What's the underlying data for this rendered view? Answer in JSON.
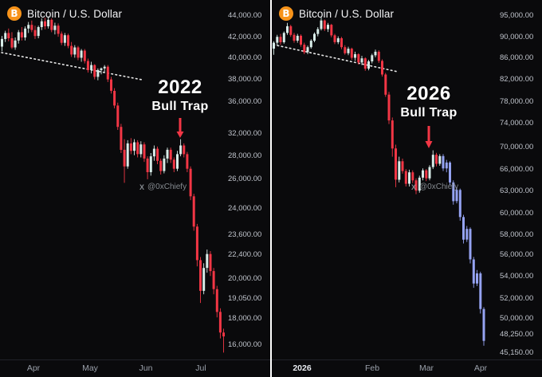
{
  "page": {
    "background": "#0a0a0c",
    "divider_color": "#ffffff"
  },
  "chart_data": [
    {
      "type": "candlestick",
      "title": "Bitcoin / U.S. Dollar",
      "symbol_icon": "bitcoin-logo",
      "logo_color": "#f7931a",
      "logo_letter": "B",
      "annotation_year": "2022",
      "annotation_label": "Bull Trap",
      "watermark_prefix": "X",
      "watermark_handle": "@0xChiefy",
      "scale": "log",
      "ylim": [
        15000,
        45500
      ],
      "grid": false,
      "up_color": "#d8ece8",
      "down_color": "#f23645",
      "trendline_color": "#ffffff",
      "trendline_style": "dotted",
      "arrow_color": "#f23645",
      "x_tick_labels": [
        "Apr",
        "May",
        "Jun",
        "Jul"
      ],
      "y_tick_labels": [
        "44,000.00",
        "42,000.00",
        "40,000.00",
        "38,000.00",
        "36,000.00",
        "32,000.00",
        "28,000.00",
        "26,000.00",
        "24,000.00",
        "23,600.00",
        "22,400.00",
        "20,000.00",
        "19,050.00",
        "18,000.00",
        "16,000.00"
      ],
      "candles": [
        [
          40200,
          41600,
          39600,
          41200
        ],
        [
          41200,
          42300,
          40800,
          42000
        ],
        [
          42000,
          42600,
          40900,
          41300
        ],
        [
          41300,
          42100,
          39900,
          40100
        ],
        [
          40100,
          41400,
          39800,
          41000
        ],
        [
          41000,
          42400,
          40600,
          42100
        ],
        [
          42100,
          42800,
          41000,
          41400
        ],
        [
          41400,
          42900,
          41000,
          42600
        ],
        [
          42600,
          43500,
          42000,
          43100
        ],
        [
          43100,
          43700,
          42100,
          42400
        ],
        [
          42400,
          43000,
          41200,
          41600
        ],
        [
          41600,
          43000,
          41300,
          42800
        ],
        [
          42800,
          44000,
          42400,
          43600
        ],
        [
          43600,
          44100,
          42500,
          42900
        ],
        [
          42900,
          44300,
          42600,
          43800
        ],
        [
          43800,
          44000,
          42100,
          42400
        ],
        [
          42400,
          43400,
          41800,
          43000
        ],
        [
          43000,
          43300,
          41500,
          41900
        ],
        [
          41900,
          42200,
          40400,
          40700
        ],
        [
          40700,
          42000,
          40300,
          41700
        ],
        [
          41700,
          41900,
          40000,
          40300
        ],
        [
          40300,
          40800,
          38900,
          39200
        ],
        [
          39200,
          40400,
          38800,
          40100
        ],
        [
          40100,
          40300,
          38500,
          38800
        ],
        [
          38800,
          39900,
          38300,
          39700
        ],
        [
          39700,
          39900,
          38100,
          38400
        ],
        [
          38400,
          38700,
          37000,
          37300
        ],
        [
          37300,
          38300,
          36900,
          37900
        ],
        [
          37900,
          38000,
          36200,
          36500
        ],
        [
          36500,
          37500,
          36100,
          37300
        ],
        [
          37300,
          37600,
          36800,
          37500
        ],
        [
          37500,
          37900,
          37100,
          37700
        ],
        [
          37700,
          37900,
          35900,
          36200
        ],
        [
          36200,
          36500,
          34600,
          34900
        ],
        [
          34900,
          35200,
          33000,
          33300
        ],
        [
          33300,
          33600,
          30800,
          31100
        ],
        [
          31100,
          31400,
          28600,
          28900
        ],
        [
          28900,
          29900,
          26000,
          27400
        ],
        [
          27400,
          29800,
          27200,
          29500
        ],
        [
          29500,
          30000,
          28500,
          28800
        ],
        [
          28800,
          29900,
          28400,
          29600
        ],
        [
          29600,
          29800,
          28200,
          28500
        ],
        [
          28500,
          29700,
          28200,
          29400
        ],
        [
          29400,
          29600,
          27800,
          28100
        ],
        [
          28100,
          28300,
          26300,
          26900
        ],
        [
          26900,
          28600,
          26600,
          28300
        ],
        [
          28300,
          29300,
          27900,
          29000
        ],
        [
          29000,
          29200,
          27600,
          27900
        ],
        [
          27900,
          28100,
          26700,
          27000
        ],
        [
          27000,
          28400,
          26800,
          28100
        ],
        [
          28100,
          29100,
          27700,
          28900
        ],
        [
          28900,
          29100,
          27700,
          28000
        ],
        [
          28000,
          28200,
          26900,
          27200
        ],
        [
          27200,
          28800,
          27000,
          28500
        ],
        [
          28500,
          29900,
          28300,
          29300
        ],
        [
          29300,
          29500,
          28200,
          28500
        ],
        [
          28500,
          28700,
          26900,
          27200
        ],
        [
          27200,
          27400,
          24600,
          24900
        ],
        [
          24900,
          25100,
          22300,
          22600
        ],
        [
          22600,
          22800,
          19900,
          20300
        ],
        [
          20300,
          20500,
          17700,
          18400
        ],
        [
          18400,
          20100,
          18200,
          19800
        ],
        [
          19800,
          21000,
          19500,
          20700
        ],
        [
          20700,
          20900,
          19300,
          19600
        ],
        [
          19600,
          19800,
          18200,
          18500
        ],
        [
          18500,
          18700,
          16900,
          17200
        ],
        [
          17200,
          17400,
          15800,
          16100
        ],
        [
          16100,
          16300,
          15100,
          15900
        ]
      ]
    },
    {
      "type": "candlestick",
      "title": "Bitcoin / U.S. Dollar",
      "symbol_icon": "bitcoin-logo",
      "logo_color": "#f7931a",
      "logo_letter": "B",
      "annotation_year": "2026",
      "annotation_label": "Bull Trap",
      "watermark_prefix": "X",
      "watermark_handle": "@0xChiefy",
      "scale": "log",
      "ylim": [
        44000,
        96500
      ],
      "grid": false,
      "up_color": "#d8ece8",
      "down_color": "#f23645",
      "projection_from_index": 50,
      "projection_color": "#95a3f2",
      "trendline_color": "#ffffff",
      "trendline_style": "dotted",
      "arrow_color": "#f23645",
      "x_tick_labels": [
        "2026",
        "Feb",
        "Mar",
        "Apr"
      ],
      "y_tick_labels": [
        "95,000.00",
        "90,000.00",
        "86,000.00",
        "82,000.00",
        "78,000.00",
        "74,000.00",
        "70,000.00",
        "66,000.00",
        "63,000.00",
        "60,000.00",
        "58,000.00",
        "56,000.00",
        "54,000.00",
        "52,000.00",
        "50,000.00",
        "48,250.00",
        "45,150.00"
      ],
      "candles": [
        [
          88000,
          89500,
          86800,
          89200
        ],
        [
          89200,
          90800,
          88600,
          90400
        ],
        [
          90400,
          91000,
          88800,
          89300
        ],
        [
          89300,
          91500,
          89000,
          91200
        ],
        [
          91200,
          93300,
          90800,
          92600
        ],
        [
          92600,
          92900,
          90400,
          90800
        ],
        [
          90800,
          91200,
          89200,
          89600
        ],
        [
          89600,
          91000,
          89200,
          90600
        ],
        [
          90600,
          90900,
          88400,
          88800
        ],
        [
          88800,
          89200,
          86900,
          87300
        ],
        [
          87300,
          88600,
          86900,
          88300
        ],
        [
          88300,
          89900,
          88000,
          89600
        ],
        [
          89600,
          91300,
          89300,
          91000
        ],
        [
          91000,
          92400,
          90500,
          92000
        ],
        [
          92000,
          94600,
          91700,
          93800
        ],
        [
          93800,
          94000,
          91600,
          92000
        ],
        [
          92000,
          93300,
          91400,
          92900
        ],
        [
          92900,
          93100,
          90300,
          90700
        ],
        [
          90700,
          91000,
          88900,
          89300
        ],
        [
          89300,
          90500,
          88900,
          90100
        ],
        [
          90100,
          90400,
          87900,
          88300
        ],
        [
          88300,
          88700,
          86800,
          87100
        ],
        [
          87100,
          88400,
          86700,
          88000
        ],
        [
          88000,
          88200,
          85800,
          86200
        ],
        [
          86200,
          87400,
          85600,
          86900
        ],
        [
          86900,
          87100,
          84900,
          85300
        ],
        [
          85300,
          86600,
          84800,
          86100
        ],
        [
          86100,
          86300,
          83700,
          84100
        ],
        [
          84100,
          85800,
          83800,
          85500
        ],
        [
          85500,
          87000,
          85100,
          86700
        ],
        [
          86700,
          87800,
          86300,
          87400
        ],
        [
          87400,
          87700,
          85200,
          85600
        ],
        [
          85600,
          85900,
          82600,
          83000
        ],
        [
          83000,
          83300,
          78900,
          79300
        ],
        [
          79300,
          79800,
          74200,
          74800
        ],
        [
          74800,
          75300,
          68900,
          70200
        ],
        [
          70200,
          70800,
          64300,
          65400
        ],
        [
          65400,
          68900,
          65000,
          68200
        ],
        [
          68200,
          68600,
          66300,
          66700
        ],
        [
          66700,
          67000,
          64400,
          64800
        ],
        [
          64800,
          66900,
          64400,
          66500
        ],
        [
          66500,
          66800,
          64900,
          65300
        ],
        [
          65300,
          65600,
          63300,
          63800
        ],
        [
          63800,
          66000,
          63500,
          65700
        ],
        [
          65700,
          67100,
          65300,
          66800
        ],
        [
          66800,
          67000,
          65200,
          65600
        ],
        [
          65600,
          67600,
          65300,
          67300
        ],
        [
          67300,
          69900,
          67000,
          69200
        ],
        [
          69200,
          69500,
          67400,
          67800
        ],
        [
          67800,
          69300,
          67500,
          69000
        ],
        [
          69000,
          69300,
          66700,
          67100
        ],
        [
          67100,
          68400,
          66500,
          68000
        ],
        [
          68000,
          68200,
          64600,
          65000
        ],
        [
          65000,
          65300,
          61800,
          62300
        ],
        [
          62300,
          64300,
          62000,
          63900
        ],
        [
          63900,
          64100,
          59600,
          60100
        ],
        [
          60100,
          60400,
          56600,
          57100
        ],
        [
          57100,
          58900,
          56800,
          58500
        ],
        [
          58500,
          58700,
          54100,
          54600
        ],
        [
          54600,
          54900,
          51200,
          51700
        ],
        [
          51700,
          53300,
          51400,
          52900
        ],
        [
          52900,
          53100,
          48300,
          48800
        ],
        [
          48800,
          49000,
          44900,
          45400
        ]
      ]
    }
  ]
}
